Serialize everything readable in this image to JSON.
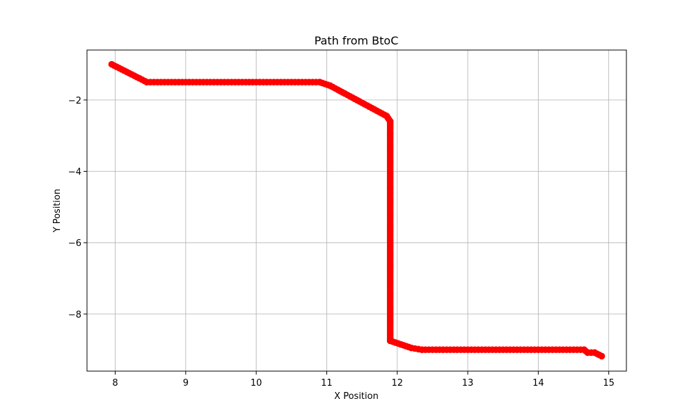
{
  "chart_data": {
    "type": "scatter",
    "title": "Path from BtoC",
    "xlabel": "X Position",
    "ylabel": "Y Position",
    "xlim": [
      7.6,
      15.25
    ],
    "ylim": [
      -9.6,
      -0.6
    ],
    "xticks": [
      8,
      9,
      10,
      11,
      12,
      13,
      14,
      15
    ],
    "yticks": [
      -2,
      -4,
      -6,
      -8
    ],
    "ytick_labels": [
      "−2",
      "−4",
      "−6",
      "−8"
    ],
    "xtick_labels": [
      "8",
      "9",
      "10",
      "11",
      "12",
      "13",
      "14",
      "15"
    ],
    "grid": true,
    "color": "#ff0000",
    "path_segments": [
      {
        "from": [
          7.95,
          -1.0
        ],
        "to": [
          8.45,
          -1.5
        ],
        "step": 0.05
      },
      {
        "from": [
          8.45,
          -1.5
        ],
        "to": [
          10.9,
          -1.5
        ],
        "step": 0.05
      },
      {
        "from": [
          10.9,
          -1.5
        ],
        "to": [
          11.05,
          -1.6
        ],
        "step": 0.05
      },
      {
        "from": [
          11.05,
          -1.6
        ],
        "to": [
          11.85,
          -2.45
        ],
        "step": 0.05
      },
      {
        "from": [
          11.85,
          -2.45
        ],
        "to": [
          11.9,
          -2.6
        ],
        "step": 0.05
      },
      {
        "from": [
          11.9,
          -2.6
        ],
        "to": [
          11.9,
          -8.75
        ],
        "step": 0.05
      },
      {
        "from": [
          11.9,
          -8.75
        ],
        "to": [
          12.05,
          -8.85
        ],
        "step": 0.05
      },
      {
        "from": [
          12.05,
          -8.85
        ],
        "to": [
          12.2,
          -8.95
        ],
        "step": 0.05
      },
      {
        "from": [
          12.2,
          -8.95
        ],
        "to": [
          12.35,
          -9.0
        ],
        "step": 0.05
      },
      {
        "from": [
          12.35,
          -9.0
        ],
        "to": [
          14.65,
          -9.0
        ],
        "step": 0.05
      },
      {
        "from": [
          14.65,
          -9.0
        ],
        "to": [
          14.7,
          -9.08
        ],
        "step": 0.05
      },
      {
        "from": [
          14.7,
          -9.08
        ],
        "to": [
          14.8,
          -9.08
        ],
        "step": 0.05
      },
      {
        "from": [
          14.8,
          -9.08
        ],
        "to": [
          14.9,
          -9.18
        ],
        "step": 0.05
      }
    ]
  }
}
